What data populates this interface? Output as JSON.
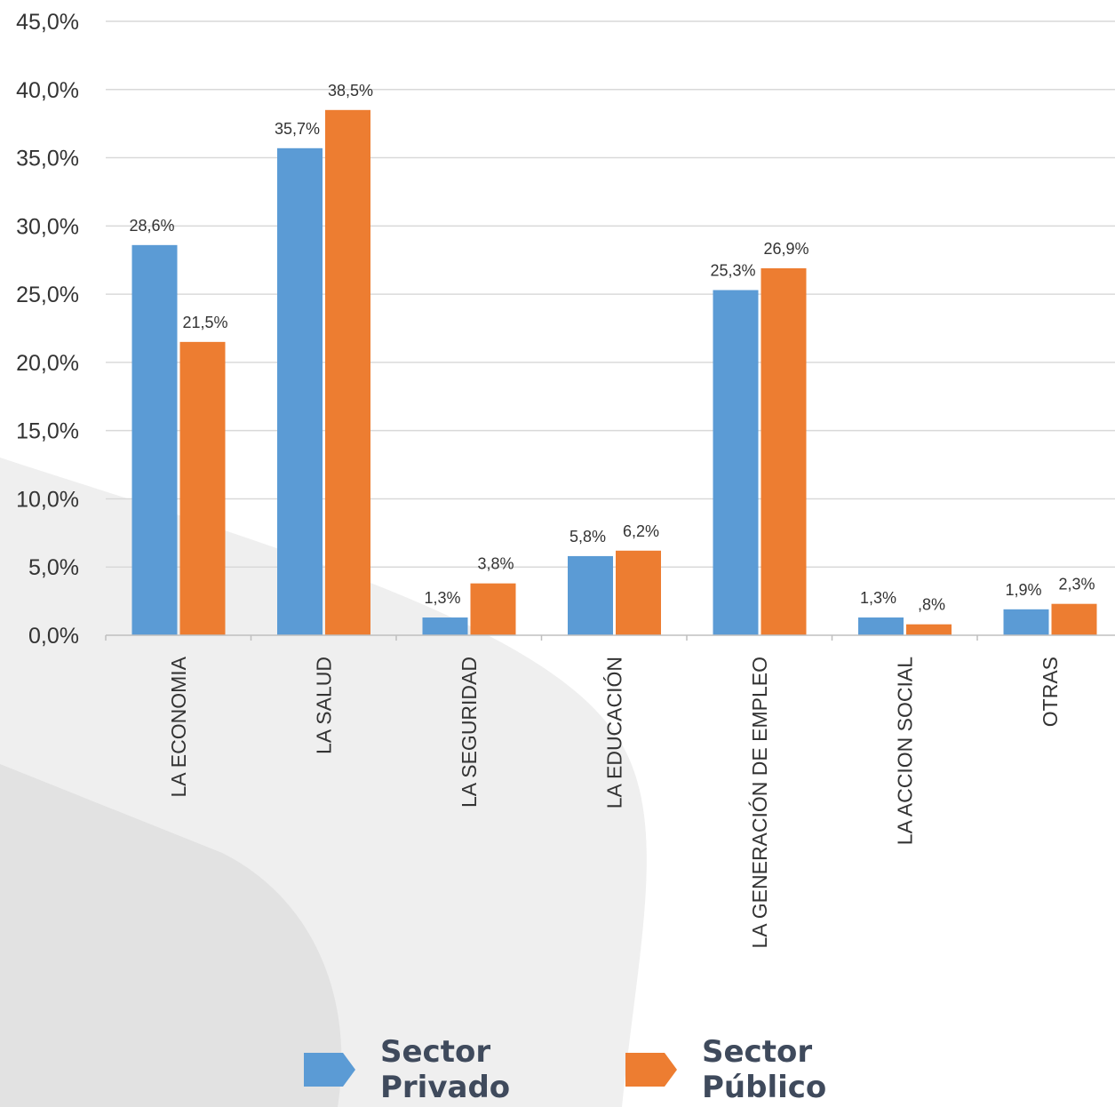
{
  "chart_data": {
    "type": "bar",
    "categories": [
      "LA ECONOMIA",
      "LA SALUD",
      "LA SEGURIDAD",
      "LA EDUCACIÓN",
      "LA GENERACIÓN DE EMPLEO",
      "LA ACCION SOCIAL",
      "OTRAS"
    ],
    "series": [
      {
        "name": "Sector Privado",
        "color": "#5B9BD5",
        "values": [
          28.6,
          35.7,
          1.3,
          5.8,
          25.3,
          1.3,
          1.9
        ],
        "labels": [
          "28,6%",
          "35,7%",
          "1,3%",
          "5,8%",
          "25,3%",
          "1,3%",
          "1,9%"
        ]
      },
      {
        "name": "Sector Público",
        "color": "#ED7D31",
        "values": [
          21.5,
          38.5,
          3.8,
          6.2,
          26.9,
          0.8,
          2.3
        ],
        "labels": [
          "21,5%",
          "38,5%",
          "3,8%",
          "6,2%",
          "26,9%",
          ",8%",
          "2,3%"
        ]
      }
    ],
    "ylim": [
      0,
      45
    ],
    "yticks": [
      0,
      5,
      10,
      15,
      20,
      25,
      30,
      35,
      40,
      45
    ],
    "ytick_labels": [
      "0,0%",
      "5,0%",
      "10,0%",
      "15,0%",
      "20,0%",
      "25,0%",
      "30,0%",
      "35,0%",
      "40,0%",
      "45,0%"
    ],
    "grid": true,
    "legend_position": "bottom"
  },
  "legend": {
    "private": {
      "line1": "Sector",
      "line2": "Privado"
    },
    "public": {
      "line1": "Sector",
      "line2": "Público"
    }
  }
}
